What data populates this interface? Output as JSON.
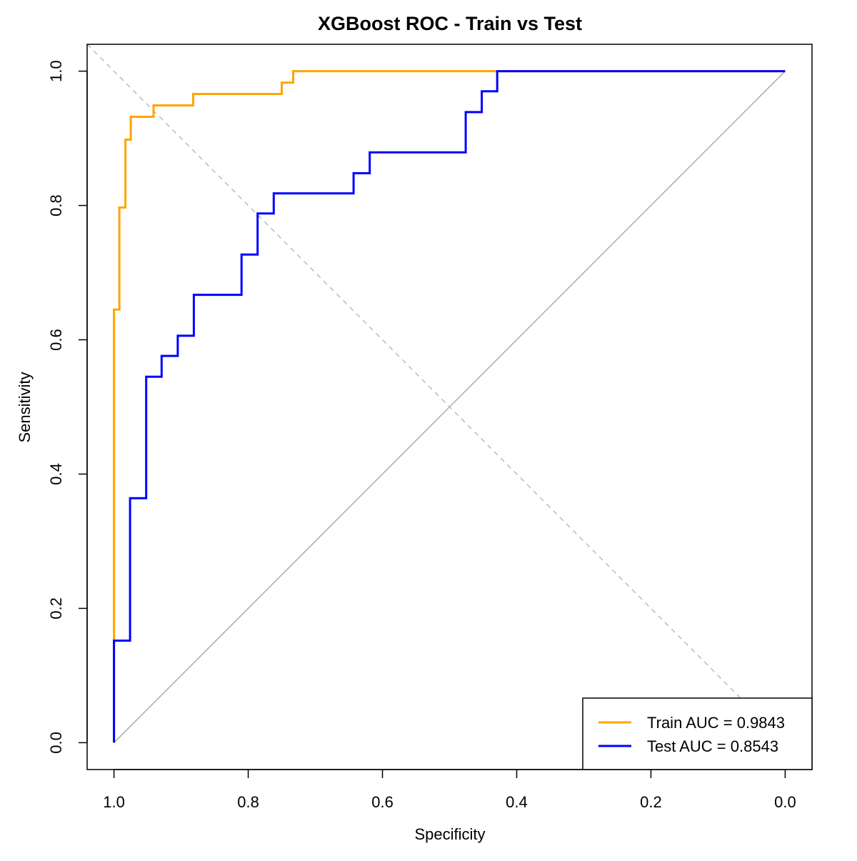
{
  "chart_data": {
    "type": "line",
    "title": "XGBoost ROC - Train vs Test",
    "xlabel": "Specificity",
    "ylabel": "Sensitivity",
    "xlim": [
      1.04,
      -0.04
    ],
    "ylim": [
      -0.04,
      1.04
    ],
    "x_reversed": true,
    "x_ticks": [
      "1.0",
      "0.8",
      "0.6",
      "0.4",
      "0.2",
      "0.0"
    ],
    "x_tick_values": [
      1.0,
      0.8,
      0.6,
      0.4,
      0.2,
      0.0
    ],
    "y_ticks": [
      "0.0",
      "0.2",
      "0.4",
      "0.6",
      "0.8",
      "1.0"
    ],
    "y_tick_values": [
      0.0,
      0.2,
      0.4,
      0.6,
      0.8,
      1.0
    ],
    "grid": false,
    "legend_position": "bottom-right",
    "reference_lines": [
      {
        "name": "diagonal",
        "style": "solid",
        "color": "#aaaaaa",
        "x": [
          1.0,
          0.0
        ],
        "y": [
          0.0,
          1.0
        ]
      },
      {
        "name": "anti-diagonal",
        "style": "dashed",
        "color": "#bbbbbb",
        "x": [
          1.04,
          -0.04
        ],
        "y": [
          1.04,
          -0.04
        ]
      }
    ],
    "series": [
      {
        "name": "Train AUC = 0.9843",
        "color": "#FFA500",
        "points": [
          [
            1.0,
            0.0
          ],
          [
            1.0,
            0.15
          ],
          [
            1.0,
            0.645
          ],
          [
            0.992,
            0.645
          ],
          [
            0.992,
            0.797
          ],
          [
            0.983,
            0.797
          ],
          [
            0.983,
            0.898
          ],
          [
            0.975,
            0.898
          ],
          [
            0.975,
            0.932
          ],
          [
            0.941,
            0.932
          ],
          [
            0.941,
            0.949
          ],
          [
            0.882,
            0.949
          ],
          [
            0.882,
            0.966
          ],
          [
            0.75,
            0.966
          ],
          [
            0.75,
            0.983
          ],
          [
            0.733,
            0.983
          ],
          [
            0.733,
            1.0
          ],
          [
            0.0,
            1.0
          ]
        ]
      },
      {
        "name": "Test AUC = 0.8543",
        "color": "#0000FF",
        "points": [
          [
            1.0,
            0.0
          ],
          [
            1.0,
            0.152
          ],
          [
            0.976,
            0.152
          ],
          [
            0.976,
            0.364
          ],
          [
            0.952,
            0.364
          ],
          [
            0.952,
            0.545
          ],
          [
            0.929,
            0.545
          ],
          [
            0.929,
            0.576
          ],
          [
            0.905,
            0.576
          ],
          [
            0.905,
            0.606
          ],
          [
            0.881,
            0.606
          ],
          [
            0.881,
            0.667
          ],
          [
            0.81,
            0.667
          ],
          [
            0.81,
            0.727
          ],
          [
            0.786,
            0.727
          ],
          [
            0.786,
            0.788
          ],
          [
            0.762,
            0.788
          ],
          [
            0.762,
            0.818
          ],
          [
            0.643,
            0.818
          ],
          [
            0.643,
            0.848
          ],
          [
            0.619,
            0.848
          ],
          [
            0.619,
            0.879
          ],
          [
            0.476,
            0.879
          ],
          [
            0.476,
            0.939
          ],
          [
            0.452,
            0.939
          ],
          [
            0.452,
            0.97
          ],
          [
            0.429,
            0.97
          ],
          [
            0.429,
            1.0
          ],
          [
            0.0,
            1.0
          ]
        ]
      }
    ]
  }
}
